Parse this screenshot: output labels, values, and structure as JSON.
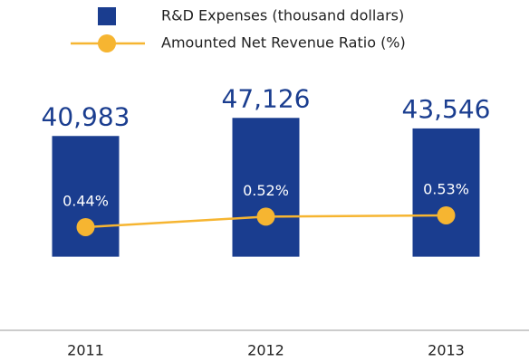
{
  "chart_data": {
    "type": "combo",
    "categories": [
      "2011",
      "2012",
      "2013"
    ],
    "series": [
      {
        "name": "R&D Expenses (thousand dollars)",
        "type": "bar",
        "color": "#1a3d8f",
        "values": [
          40983,
          47126,
          43546
        ],
        "value_labels": [
          "40,983",
          "47,126",
          "43,546"
        ]
      },
      {
        "name": "Amounted Net Revenue Ratio (%)",
        "type": "line",
        "axis": "y2",
        "color": "#f6b531",
        "values": [
          0.44,
          0.52,
          0.53
        ],
        "value_labels": [
          "0.44%",
          "0.52%",
          "0.53%"
        ]
      }
    ],
    "ylim": [
      -25000,
      85000
    ],
    "y2lim": [
      -0.35,
      2.13
    ]
  }
}
